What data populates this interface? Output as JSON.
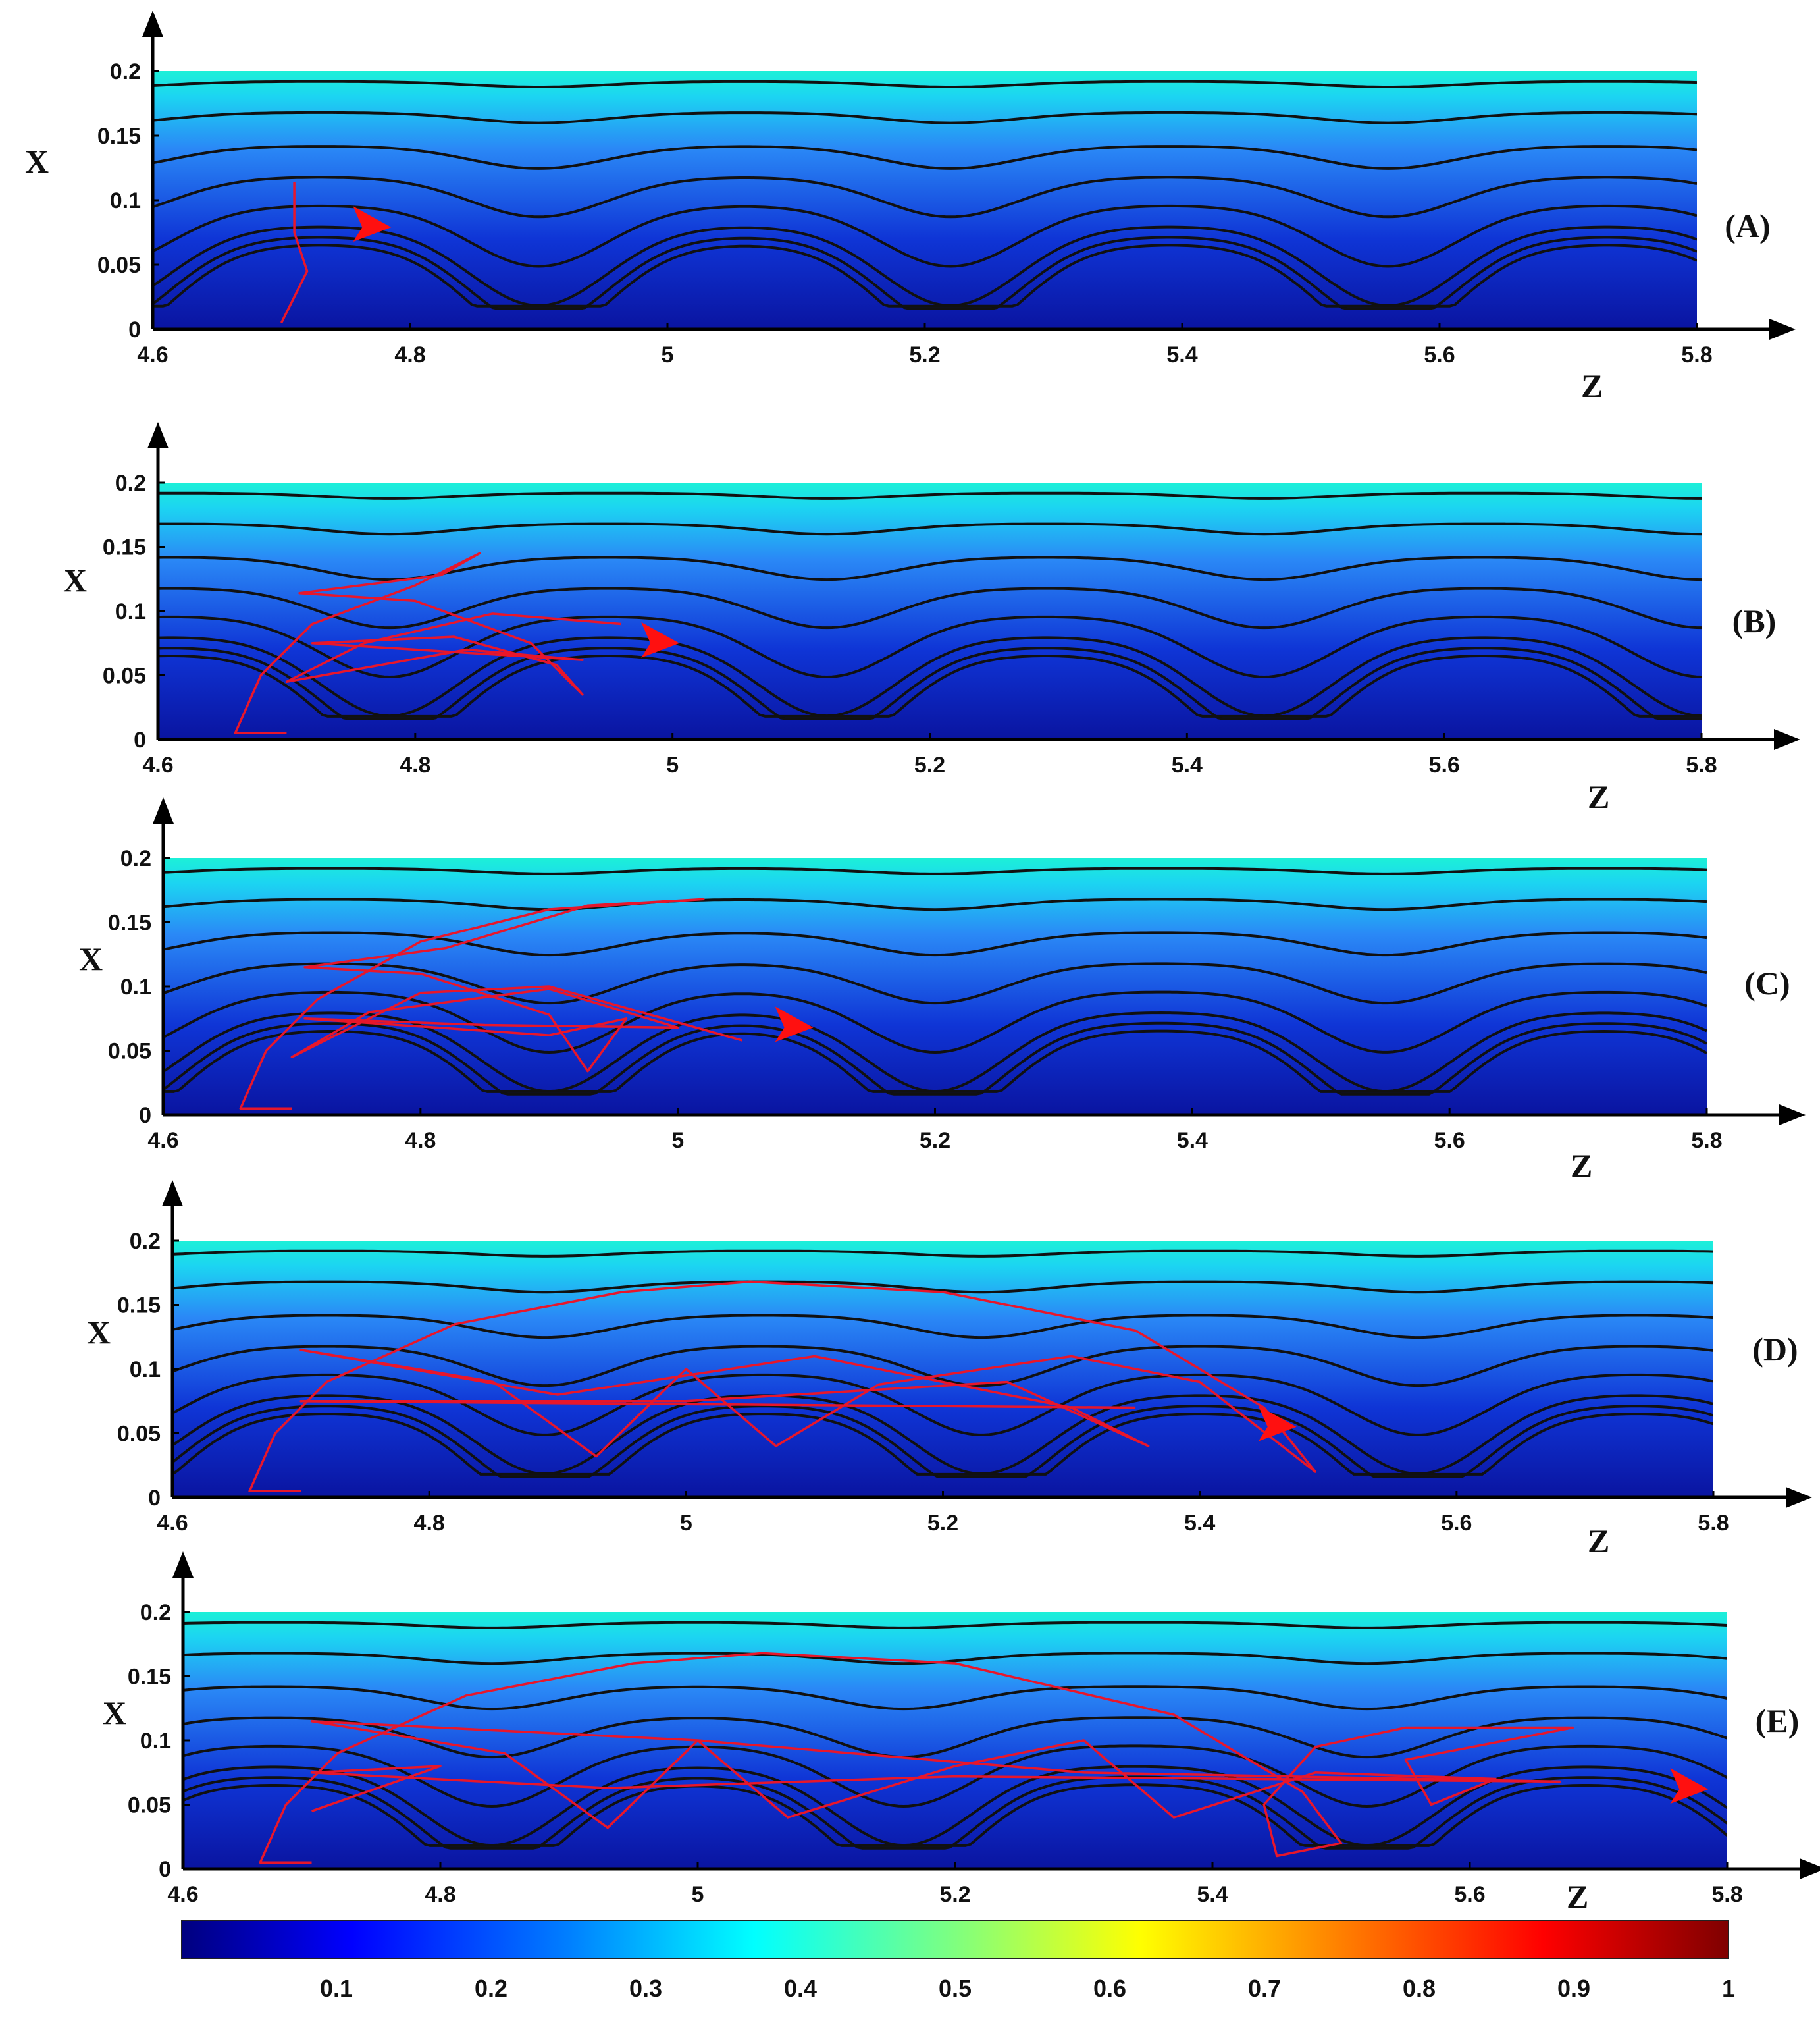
{
  "chart_data": [
    {
      "type": "heatmap",
      "panel_label": "(A)",
      "xlabel": "Z",
      "ylabel": "X",
      "xlim": [
        4.6,
        5.8
      ],
      "ylim": [
        0,
        0.2
      ],
      "xticks": [
        "4.6",
        "4.8",
        "5",
        "5.2",
        "5.4",
        "5.6",
        "5.8"
      ],
      "yticks": [
        "0",
        "0.05",
        "0.1",
        "0.15",
        "0.2"
      ],
      "wall_troughs_z": [
        4.9,
        5.22,
        5.56
      ],
      "streamline_levels_x": [
        0.192,
        0.168,
        0.142,
        0.118,
        0.096,
        0.08,
        0.072,
        0.066
      ],
      "particle_path": [
        [
          4.71,
          0.114
        ],
        [
          4.71,
          0.114
        ],
        [
          4.71,
          0.075
        ],
        [
          4.71,
          0.075
        ],
        [
          4.72,
          0.045
        ],
        [
          4.7,
          0.005
        ],
        [
          4.7,
          0.005
        ]
      ],
      "arrow_at": [
        4.77,
        0.079
      ]
    },
    {
      "type": "heatmap",
      "panel_label": "(B)",
      "xlabel": "Z",
      "ylabel": "X",
      "xlim": [
        4.6,
        5.8
      ],
      "ylim": [
        0,
        0.2
      ],
      "xticks": [
        "4.6",
        "4.8",
        "5",
        "5.2",
        "5.4",
        "5.6",
        "5.8"
      ],
      "yticks": [
        "0",
        "0.05",
        "0.1",
        "0.15",
        "0.2"
      ],
      "wall_troughs_z": [
        4.78,
        5.12,
        5.46
      ],
      "streamline_levels_x": [
        0.192,
        0.168,
        0.142,
        0.118,
        0.096,
        0.08,
        0.072,
        0.066
      ],
      "particle_path": [
        [
          4.7,
          0.005
        ],
        [
          4.66,
          0.005
        ],
        [
          4.68,
          0.05
        ],
        [
          4.72,
          0.09
        ],
        [
          4.8,
          0.12
        ],
        [
          4.85,
          0.145
        ],
        [
          4.82,
          0.128
        ],
        [
          4.71,
          0.114
        ],
        [
          4.8,
          0.108
        ],
        [
          4.89,
          0.075
        ],
        [
          4.93,
          0.035
        ],
        [
          4.91,
          0.058
        ],
        [
          4.83,
          0.08
        ],
        [
          4.72,
          0.075
        ],
        [
          4.72,
          0.075
        ],
        [
          4.93,
          0.062
        ],
        [
          4.84,
          0.07
        ],
        [
          4.7,
          0.045
        ],
        [
          4.76,
          0.075
        ],
        [
          4.86,
          0.098
        ],
        [
          4.96,
          0.09
        ]
      ],
      "arrow_at": [
        4.99,
        0.075
      ]
    },
    {
      "type": "heatmap",
      "panel_label": "(C)",
      "xlabel": "Z",
      "ylabel": "X",
      "xlim": [
        4.6,
        5.8
      ],
      "ylim": [
        0,
        0.2
      ],
      "xticks": [
        "4.6",
        "4.8",
        "5",
        "5.2",
        "5.4",
        "5.6",
        "5.8"
      ],
      "yticks": [
        "0",
        "0.05",
        "0.1",
        "0.15",
        "0.2"
      ],
      "wall_troughs_z": [
        4.9,
        5.2,
        5.55
      ],
      "streamline_levels_x": [
        0.192,
        0.168,
        0.142,
        0.118,
        0.096,
        0.08,
        0.072,
        0.066
      ],
      "particle_path": [
        [
          4.7,
          0.005
        ],
        [
          4.66,
          0.005
        ],
        [
          4.68,
          0.05
        ],
        [
          4.72,
          0.09
        ],
        [
          4.8,
          0.135
        ],
        [
          4.9,
          0.16
        ],
        [
          5.02,
          0.168
        ],
        [
          4.93,
          0.163
        ],
        [
          4.82,
          0.13
        ],
        [
          4.71,
          0.115
        ],
        [
          4.8,
          0.11
        ],
        [
          4.9,
          0.078
        ],
        [
          4.93,
          0.034
        ],
        [
          4.96,
          0.075
        ],
        [
          4.9,
          0.062
        ],
        [
          4.71,
          0.075
        ],
        [
          4.85,
          0.07
        ],
        [
          5.0,
          0.068
        ],
        [
          4.9,
          0.098
        ],
        [
          4.76,
          0.08
        ],
        [
          4.7,
          0.045
        ],
        [
          4.8,
          0.095
        ],
        [
          4.9,
          0.1
        ],
        [
          5.05,
          0.058
        ]
      ],
      "arrow_at": [
        5.09,
        0.068
      ]
    },
    {
      "type": "heatmap",
      "panel_label": "(D)",
      "xlabel": "Z",
      "ylabel": "X",
      "xlim": [
        4.6,
        5.8
      ],
      "ylim": [
        0,
        0.2
      ],
      "xticks": [
        "4.6",
        "4.8",
        "5",
        "5.2",
        "5.4",
        "5.6",
        "5.8"
      ],
      "yticks": [
        "0",
        "0.05",
        "0.1",
        "0.15",
        "0.2"
      ],
      "wall_troughs_z": [
        4.89,
        5.23,
        5.57
      ],
      "streamline_levels_x": [
        0.192,
        0.168,
        0.142,
        0.118,
        0.096,
        0.08,
        0.072,
        0.066
      ],
      "particle_path": [
        [
          4.7,
          0.005
        ],
        [
          4.66,
          0.005
        ],
        [
          4.68,
          0.05
        ],
        [
          4.72,
          0.09
        ],
        [
          4.82,
          0.135
        ],
        [
          4.95,
          0.16
        ],
        [
          5.05,
          0.168
        ],
        [
          5.2,
          0.16
        ],
        [
          5.35,
          0.13
        ],
        [
          5.45,
          0.07
        ],
        [
          5.49,
          0.02
        ],
        [
          5.4,
          0.09
        ],
        [
          5.3,
          0.11
        ],
        [
          5.15,
          0.088
        ],
        [
          5.07,
          0.04
        ],
        [
          5.0,
          0.1
        ],
        [
          4.93,
          0.032
        ],
        [
          4.85,
          0.09
        ],
        [
          4.7,
          0.115
        ],
        [
          4.9,
          0.08
        ],
        [
          5.1,
          0.11
        ],
        [
          5.3,
          0.07
        ],
        [
          5.36,
          0.04
        ],
        [
          5.25,
          0.09
        ],
        [
          5.0,
          0.075
        ],
        [
          4.7,
          0.075
        ],
        [
          5.35,
          0.07
        ]
      ],
      "arrow_at": [
        5.46,
        0.055
      ]
    },
    {
      "type": "heatmap",
      "panel_label": "(E)",
      "xlabel": "Z",
      "ylabel": "X",
      "xlim": [
        4.6,
        5.8
      ],
      "ylim": [
        0,
        0.2
      ],
      "xticks": [
        "4.6",
        "4.8",
        "5",
        "5.2",
        "5.4",
        "5.6",
        "5.8"
      ],
      "yticks": [
        "0",
        "0.05",
        "0.1",
        "0.15",
        "0.2"
      ],
      "wall_troughs_z": [
        4.84,
        5.16,
        5.52
      ],
      "streamline_levels_x": [
        0.192,
        0.168,
        0.142,
        0.118,
        0.096,
        0.08,
        0.072,
        0.066
      ],
      "particle_path": [
        [
          4.7,
          0.005
        ],
        [
          4.66,
          0.005
        ],
        [
          4.68,
          0.05
        ],
        [
          4.72,
          0.09
        ],
        [
          4.82,
          0.135
        ],
        [
          4.95,
          0.16
        ],
        [
          5.05,
          0.168
        ],
        [
          5.2,
          0.16
        ],
        [
          5.37,
          0.12
        ],
        [
          5.47,
          0.06
        ],
        [
          5.5,
          0.02
        ],
        [
          5.45,
          0.01
        ],
        [
          5.44,
          0.05
        ],
        [
          5.48,
          0.095
        ],
        [
          5.55,
          0.11
        ],
        [
          5.68,
          0.11
        ],
        [
          5.55,
          0.085
        ],
        [
          5.57,
          0.05
        ],
        [
          5.62,
          0.07
        ],
        [
          5.48,
          0.075
        ],
        [
          5.37,
          0.04
        ],
        [
          5.3,
          0.1
        ],
        [
          5.2,
          0.08
        ],
        [
          5.07,
          0.04
        ],
        [
          5.0,
          0.1
        ],
        [
          4.93,
          0.032
        ],
        [
          4.85,
          0.09
        ],
        [
          4.7,
          0.115
        ],
        [
          5.0,
          0.1
        ],
        [
          5.3,
          0.075
        ],
        [
          5.67,
          0.068
        ],
        [
          5.2,
          0.072
        ],
        [
          4.93,
          0.063
        ],
        [
          4.7,
          0.075
        ],
        [
          4.8,
          0.08
        ],
        [
          4.7,
          0.045
        ]
      ],
      "arrow_at": [
        5.77,
        0.062
      ]
    }
  ],
  "colorbar": {
    "ticks": [
      "0.1",
      "0.2",
      "0.3",
      "0.4",
      "0.5",
      "0.6",
      "0.7",
      "0.8",
      "0.9",
      "1"
    ],
    "range": [
      0,
      1
    ],
    "colormap": "jet",
    "colors": [
      "#00007f",
      "#0000ff",
      "#007fff",
      "#00ffff",
      "#7fff7f",
      "#ffff00",
      "#ff7f00",
      "#ff0000",
      "#7f0000"
    ]
  },
  "colors": {
    "streamline": "#111111",
    "particle_path": "#e8162b",
    "arrow": "#ff1010",
    "field_bottom": "#0b1aa8",
    "field_mid": "#1f6df0",
    "field_top": "#1cf0e8"
  }
}
